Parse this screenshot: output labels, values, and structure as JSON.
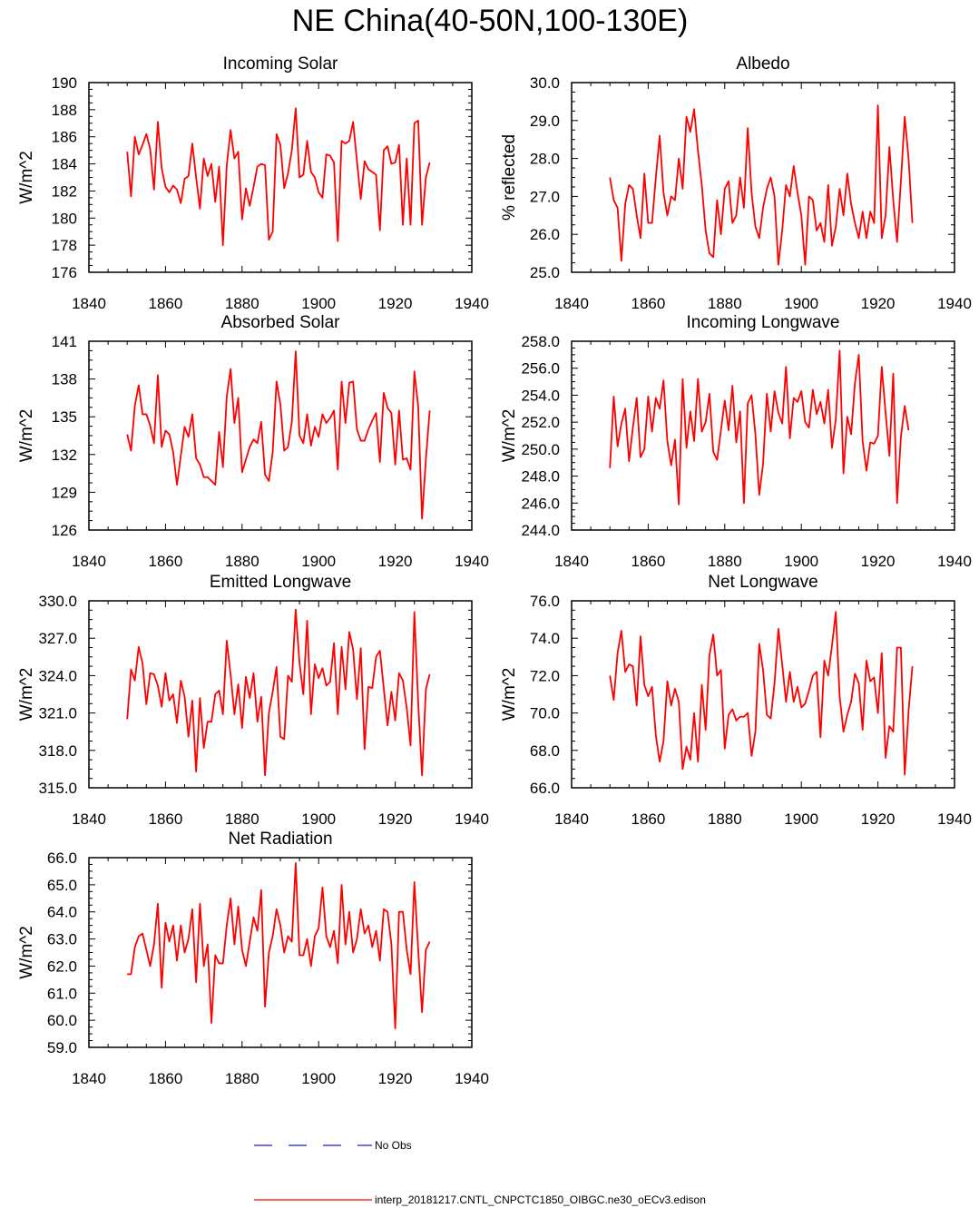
{
  "page_title": "NE China(40-50N,100-130E)",
  "legend": {
    "obs_label": "No Obs",
    "obs_color": "#1f1fbf",
    "model_label": "interp_20181217.CNTL_CNPCTC1850_OIBGC.ne30_oECv3.edison",
    "model_color": "#ff0000"
  },
  "chart_data": [
    {
      "type": "line",
      "title": "Incoming Solar",
      "xlabel": "",
      "ylabel": "W/m^2",
      "xlim": [
        1840,
        1940
      ],
      "ylim": [
        176,
        190
      ],
      "xticks": [
        1840,
        1860,
        1880,
        1900,
        1920,
        1940
      ],
      "yticks": [
        176,
        178,
        180,
        182,
        184,
        186,
        188,
        190
      ],
      "ydecimals": 0,
      "series": [
        {
          "name": "interp_20181217.CNTL_CNPCTC1850_OIBGC.ne30_oECv3.edison",
          "x_start": 1850,
          "values": [
            184.9,
            181.6,
            186.0,
            184.7,
            185.4,
            186.2,
            185.1,
            182.1,
            187.1,
            183.7,
            182.3,
            181.9,
            182.4,
            182.1,
            181.1,
            182.9,
            183.1,
            185.5,
            183.0,
            180.7,
            184.4,
            183.1,
            184.0,
            181.2,
            183.8,
            178.0,
            183.9,
            186.5,
            184.4,
            184.9,
            179.9,
            182.2,
            180.9,
            182.3,
            183.8,
            184.0,
            183.9,
            178.4,
            179.0,
            186.2,
            185.4,
            182.2,
            183.3,
            185.0,
            188.1,
            183.0,
            183.2,
            185.7,
            183.4,
            183.0,
            181.9,
            181.5,
            184.7,
            184.6,
            184.1,
            178.3,
            185.7,
            185.5,
            185.7,
            187.1,
            184.2,
            181.4,
            184.2,
            183.6,
            183.4,
            183.2,
            179.1,
            185.0,
            185.3,
            184.0,
            184.1,
            185.4,
            179.5,
            184.4,
            179.5,
            187.0,
            187.2,
            179.5,
            183.0,
            184.1
          ]
        }
      ]
    },
    {
      "type": "line",
      "title": "Albedo",
      "xlabel": "",
      "ylabel": "% reflected",
      "xlim": [
        1840,
        1940
      ],
      "ylim": [
        25.0,
        30.0
      ],
      "xticks": [
        1840,
        1860,
        1880,
        1900,
        1920,
        1940
      ],
      "yticks": [
        25.0,
        26.0,
        27.0,
        28.0,
        29.0,
        30.0
      ],
      "ydecimals": 1,
      "series": [
        {
          "name": "interp_20181217.CNTL_CNPCTC1850_OIBGC.ne30_oECv3.edison",
          "x_start": 1850,
          "values": [
            27.5,
            26.9,
            26.7,
            25.3,
            26.8,
            27.3,
            27.2,
            26.5,
            25.9,
            27.6,
            26.3,
            26.3,
            27.5,
            28.6,
            27.1,
            26.5,
            27.0,
            26.9,
            28.0,
            27.2,
            29.1,
            28.7,
            29.3,
            28.2,
            27.3,
            26.1,
            25.5,
            25.4,
            26.9,
            26.0,
            27.2,
            27.4,
            26.3,
            26.5,
            27.5,
            26.7,
            28.8,
            27.1,
            26.2,
            25.9,
            26.7,
            27.2,
            27.5,
            27.0,
            25.2,
            26.1,
            27.3,
            27.0,
            27.8,
            27.1,
            26.5,
            25.2,
            27.0,
            26.9,
            26.1,
            26.3,
            25.8,
            27.3,
            25.7,
            26.2,
            27.2,
            26.5,
            27.6,
            26.8,
            26.3,
            25.9,
            26.6,
            25.9,
            26.6,
            26.3,
            29.4,
            25.9,
            26.5,
            28.3,
            26.9,
            25.8,
            27.4,
            29.1,
            28.0,
            26.3
          ]
        }
      ]
    },
    {
      "type": "line",
      "title": "Absorbed Solar",
      "xlabel": "",
      "ylabel": "W/m^2",
      "xlim": [
        1840,
        1940
      ],
      "ylim": [
        126,
        141
      ],
      "xticks": [
        1840,
        1860,
        1880,
        1900,
        1920,
        1940
      ],
      "yticks": [
        126,
        129,
        132,
        135,
        138,
        141
      ],
      "ydecimals": 0,
      "series": [
        {
          "name": "interp_20181217.CNTL_CNPCTC1850_OIBGC.ne30_oECv3.edison",
          "x_start": 1850,
          "values": [
            133.6,
            132.3,
            135.9,
            137.5,
            135.2,
            135.2,
            134.3,
            132.9,
            138.3,
            132.6,
            133.9,
            133.6,
            132.2,
            129.6,
            131.9,
            134.2,
            133.4,
            135.2,
            131.7,
            131.2,
            130.2,
            130.2,
            129.9,
            129.6,
            133.8,
            131.0,
            136.6,
            138.8,
            134.5,
            136.5,
            130.6,
            131.6,
            132.6,
            133.2,
            132.9,
            134.6,
            130.4,
            129.9,
            132.2,
            137.8,
            136.0,
            132.3,
            132.6,
            134.6,
            140.2,
            133.5,
            132.9,
            135.2,
            132.7,
            134.2,
            133.4,
            135.2,
            134.5,
            134.9,
            135.5,
            130.8,
            137.8,
            134.5,
            137.7,
            137.8,
            134.0,
            133.1,
            133.1,
            134.0,
            134.7,
            135.3,
            131.4,
            136.9,
            135.7,
            135.3,
            131.2,
            135.5,
            131.6,
            131.7,
            130.8,
            138.6,
            135.8,
            126.9,
            131.6,
            135.5
          ]
        }
      ]
    },
    {
      "type": "line",
      "title": "Incoming Longwave",
      "xlabel": "",
      "ylabel": "W/m^2",
      "xlim": [
        1840,
        1940
      ],
      "ylim": [
        244.0,
        258.0
      ],
      "xticks": [
        1840,
        1860,
        1880,
        1900,
        1920,
        1940
      ],
      "yticks": [
        244.0,
        246.0,
        248.0,
        250.0,
        252.0,
        254.0,
        256.0,
        258.0
      ],
      "ydecimals": 1,
      "series": [
        {
          "name": "interp_20181217.CNTL_CNPCTC1850_OIBGC.ne30_oECv3.edison",
          "x_start": 1850,
          "values": [
            248.6,
            253.9,
            250.2,
            251.9,
            253.0,
            249.1,
            251.6,
            253.8,
            249.4,
            250.0,
            253.9,
            251.3,
            253.8,
            253.0,
            255.1,
            250.6,
            248.8,
            250.7,
            245.9,
            255.2,
            250.1,
            252.8,
            250.6,
            255.2,
            251.3,
            252.0,
            254.1,
            249.8,
            249.2,
            251.4,
            253.6,
            251.4,
            254.7,
            250.5,
            252.8,
            246.0,
            253.4,
            254.0,
            251.1,
            246.6,
            248.9,
            254.1,
            251.3,
            254.3,
            252.7,
            251.9,
            256.1,
            250.8,
            253.8,
            253.5,
            254.3,
            252.0,
            251.6,
            254.4,
            252.6,
            253.5,
            251.9,
            254.4,
            250.1,
            252.2,
            257.3,
            248.2,
            252.4,
            251.1,
            254.9,
            257.0,
            250.6,
            248.4,
            250.5,
            250.4,
            251.0,
            256.1,
            252.7,
            249.5,
            255.6,
            246.0,
            250.9,
            253.2,
            251.4
          ]
        }
      ]
    },
    {
      "type": "line",
      "title": "Emitted Longwave",
      "xlabel": "",
      "ylabel": "W/m^2",
      "xlim": [
        1840,
        1940
      ],
      "ylim": [
        315.0,
        330.0
      ],
      "xticks": [
        1840,
        1860,
        1880,
        1900,
        1920,
        1940
      ],
      "yticks": [
        315.0,
        318.0,
        321.0,
        324.0,
        327.0,
        330.0
      ],
      "ydecimals": 1,
      "series": [
        {
          "name": "interp_20181217.CNTL_CNPCTC1850_OIBGC.ne30_oECv3.edison",
          "x_start": 1850,
          "values": [
            320.5,
            324.5,
            323.6,
            326.3,
            325.0,
            321.7,
            324.2,
            324.1,
            323.2,
            321.5,
            324.2,
            322.0,
            322.5,
            320.2,
            323.6,
            322.3,
            319.1,
            322.0,
            316.3,
            322.2,
            318.2,
            320.3,
            320.3,
            322.5,
            322.8,
            320.9,
            326.8,
            324.1,
            320.9,
            323.3,
            319.8,
            323.9,
            322.2,
            324.2,
            320.3,
            322.3,
            316.0,
            321.0,
            322.7,
            324.7,
            319.1,
            318.9,
            324.0,
            323.5,
            329.3,
            325.0,
            322.5,
            328.4,
            320.9,
            324.9,
            323.8,
            324.6,
            323.2,
            323.5,
            326.6,
            320.9,
            326.3,
            322.9,
            327.5,
            326.1,
            322.1,
            326.2,
            318.1,
            323.1,
            323.0,
            325.5,
            326.0,
            323.0,
            320.0,
            322.7,
            320.4,
            324.2,
            323.6,
            321.4,
            318.4,
            329.1,
            321.8,
            316.0,
            322.9,
            324.1
          ]
        }
      ]
    },
    {
      "type": "line",
      "title": "Net Longwave",
      "xlabel": "",
      "ylabel": "W/m^2",
      "xlim": [
        1840,
        1940
      ],
      "ylim": [
        66.0,
        76.0
      ],
      "xticks": [
        1840,
        1860,
        1880,
        1900,
        1920,
        1940
      ],
      "yticks": [
        66.0,
        68.0,
        70.0,
        72.0,
        74.0,
        76.0
      ],
      "ydecimals": 1,
      "series": [
        {
          "name": "interp_20181217.CNTL_CNPCTC1850_OIBGC.ne30_oECv3.edison",
          "x_start": 1850,
          "values": [
            72.0,
            70.7,
            73.2,
            74.4,
            72.2,
            72.6,
            72.5,
            70.4,
            74.1,
            71.5,
            70.9,
            71.4,
            68.8,
            67.4,
            68.5,
            71.7,
            70.4,
            71.3,
            70.6,
            67.0,
            68.2,
            67.5,
            70.0,
            67.4,
            71.5,
            69.1,
            73.1,
            74.2,
            72.0,
            72.3,
            68.1,
            69.9,
            70.2,
            69.6,
            69.8,
            69.8,
            70.0,
            67.7,
            69.0,
            73.7,
            72.3,
            69.9,
            69.7,
            71.6,
            74.5,
            72.6,
            70.6,
            72.2,
            70.6,
            71.4,
            70.3,
            70.5,
            71.2,
            72.0,
            72.2,
            68.7,
            72.8,
            72.0,
            73.6,
            75.4,
            70.9,
            69.0,
            69.9,
            70.6,
            72.1,
            71.6,
            69.1,
            72.8,
            71.7,
            71.9,
            70.0,
            73.2,
            67.6,
            69.3,
            69.0,
            73.5,
            73.5,
            66.7,
            70.1,
            72.5
          ]
        }
      ]
    },
    {
      "type": "line",
      "title": "Net Radiation",
      "xlabel": "",
      "ylabel": "W/m^2",
      "xlim": [
        1840,
        1940
      ],
      "ylim": [
        59.0,
        66.0
      ],
      "xticks": [
        1840,
        1860,
        1880,
        1900,
        1920,
        1940
      ],
      "yticks": [
        59.0,
        60.0,
        61.0,
        62.0,
        63.0,
        64.0,
        65.0,
        66.0
      ],
      "ydecimals": 1,
      "series": [
        {
          "name": "interp_20181217.CNTL_CNPCTC1850_OIBGC.ne30_oECv3.edison",
          "x_start": 1850,
          "values": [
            61.7,
            61.7,
            62.7,
            63.1,
            63.2,
            62.6,
            62.0,
            62.8,
            64.3,
            61.2,
            63.6,
            62.9,
            63.5,
            62.2,
            63.5,
            62.5,
            63.0,
            64.1,
            61.4,
            64.3,
            62.0,
            62.8,
            59.9,
            62.4,
            62.1,
            62.1,
            63.5,
            64.5,
            62.8,
            64.2,
            62.6,
            62.0,
            62.9,
            63.8,
            63.3,
            64.8,
            60.5,
            62.5,
            63.1,
            64.1,
            63.5,
            62.5,
            63.1,
            62.9,
            65.8,
            62.4,
            62.4,
            63.0,
            62.0,
            63.1,
            63.4,
            64.9,
            63.1,
            62.7,
            63.3,
            62.1,
            65.0,
            62.8,
            64.0,
            62.5,
            63.0,
            64.1,
            63.2,
            63.5,
            62.7,
            63.3,
            62.2,
            64.1,
            64.0,
            62.8,
            59.7,
            64.0,
            64.0,
            62.6,
            61.7,
            65.1,
            62.6,
            60.3,
            62.6,
            62.9
          ]
        }
      ]
    }
  ]
}
